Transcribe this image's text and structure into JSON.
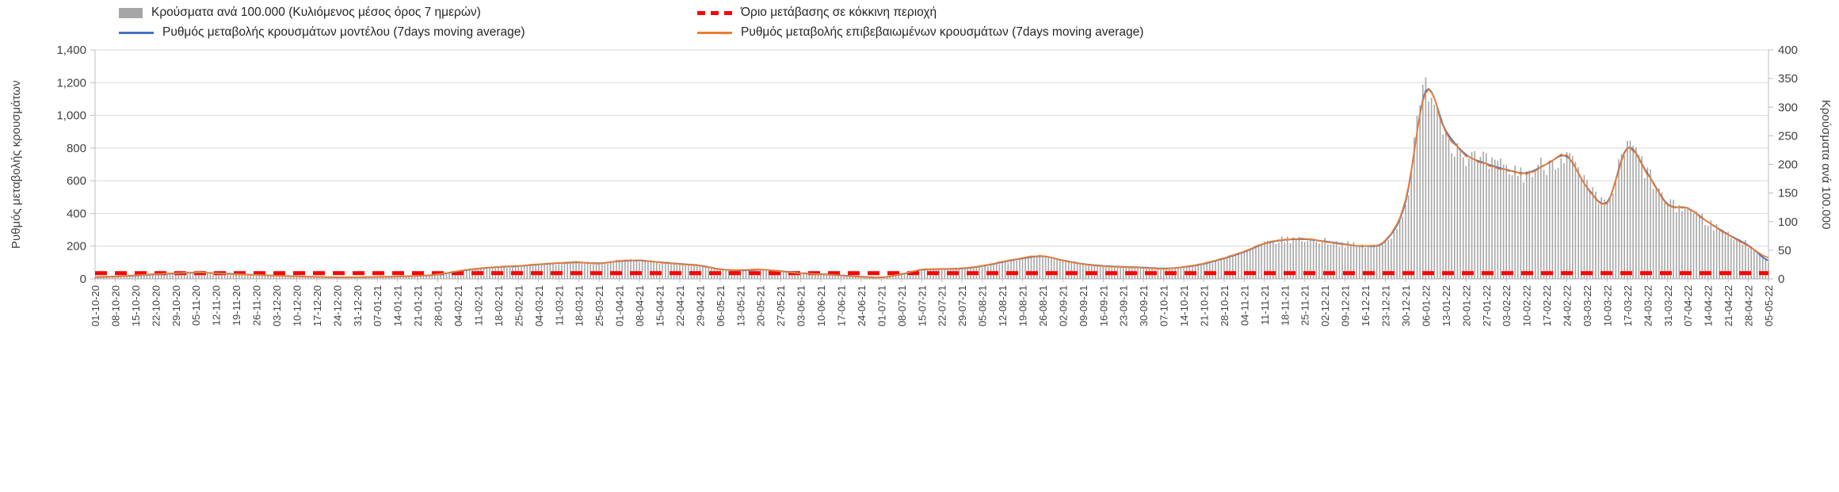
{
  "chart_data": {
    "type": "bar",
    "subtype": "combo-bar-line",
    "x_labels": [
      "01-10-20",
      "08-10-20",
      "15-10-20",
      "22-10-20",
      "29-10-20",
      "05-11-20",
      "12-11-20",
      "19-11-20",
      "26-11-20",
      "03-12-20",
      "10-12-20",
      "17-12-20",
      "24-12-20",
      "31-12-20",
      "07-01-21",
      "14-01-21",
      "21-01-21",
      "28-01-21",
      "04-02-21",
      "11-02-21",
      "18-02-21",
      "25-02-21",
      "04-03-21",
      "11-03-21",
      "18-03-21",
      "25-03-21",
      "01-04-21",
      "08-04-21",
      "15-04-21",
      "22-04-21",
      "29-04-21",
      "06-05-21",
      "13-05-21",
      "20-05-21",
      "27-05-21",
      "03-06-21",
      "10-06-21",
      "17-06-21",
      "24-06-21",
      "01-07-21",
      "08-07-21",
      "15-07-21",
      "22-07-21",
      "29-07-21",
      "05-08-21",
      "12-08-21",
      "19-08-21",
      "26-08-21",
      "02-09-21",
      "09-09-21",
      "16-09-21",
      "23-09-21",
      "30-09-21",
      "07-10-21",
      "14-10-21",
      "21-10-21",
      "28-10-21",
      "04-11-21",
      "11-11-21",
      "18-11-21",
      "25-11-21",
      "02-12-21",
      "09-12-21",
      "16-12-21",
      "23-12-21",
      "30-12-21",
      "06-01-22",
      "13-01-22",
      "20-01-22",
      "27-01-22",
      "03-02-22",
      "10-02-22",
      "17-02-22",
      "24-02-22",
      "03-03-22",
      "10-03-22",
      "17-03-22",
      "24-03-22",
      "31-03-22",
      "07-04-22",
      "14-04-22",
      "21-04-22",
      "28-04-22",
      "05-05-22"
    ],
    "left_axis": {
      "label": "Ρυθμός μεταβολής κρουσμάτων",
      "min": 0,
      "max": 1400,
      "tick_step": 200,
      "tick_labels": [
        "0",
        "200",
        "400",
        "600",
        "800",
        "1,000",
        "1,200",
        "1,400"
      ]
    },
    "right_axis": {
      "label": "Κρούσματα ανά 100.000",
      "min": 0,
      "max": 400,
      "tick_step": 50,
      "tick_labels": [
        "0",
        "50",
        "100",
        "150",
        "200",
        "250",
        "300",
        "350",
        "400"
      ]
    },
    "grid": "horizontal-only",
    "legend_position": "top",
    "bars": {
      "name": "Κρούσματα ανά 100.000 (Κυλιόμενος μέσος όρος 7 ημερών)",
      "axis": "right",
      "color": "#a6a6a6",
      "weekly_values": [
        3,
        4,
        6,
        8,
        9,
        11,
        10,
        9,
        7,
        6,
        5,
        4,
        3,
        3,
        3,
        4,
        5,
        7,
        13,
        18,
        21,
        22,
        25,
        27,
        29,
        27,
        31,
        32,
        29,
        26,
        23,
        17,
        15,
        16,
        14,
        10,
        9,
        6,
        4,
        3,
        8,
        16,
        17,
        18,
        22,
        29,
        36,
        39,
        33,
        26,
        23,
        21,
        20,
        18,
        21,
        26,
        36,
        47,
        61,
        68,
        69,
        66,
        61,
        57,
        66,
        134,
        340,
        259,
        217,
        201,
        191,
        185,
        201,
        214,
        160,
        134,
        229,
        184,
        131,
        123,
        99,
        78,
        59,
        32
      ]
    },
    "threshold": {
      "name": "Όριο μετάβασης σε κόκκινη περιοχή",
      "axis": "left",
      "color": "#ff0000",
      "value_left_axis": 35,
      "value_per_100k": 10
    },
    "model": {
      "name": "Ρυθμός μεταβολής κρουσμάτων μοντέλου (7days moving average)",
      "axis": "left",
      "color": "#4472c4",
      "weekly_values": [
        12,
        15,
        20,
        28,
        33,
        38,
        36,
        30,
        25,
        20,
        16,
        13,
        10,
        10,
        12,
        14,
        18,
        26,
        46,
        62,
        72,
        78,
        88,
        96,
        100,
        96,
        108,
        112,
        102,
        92,
        82,
        60,
        52,
        56,
        48,
        36,
        30,
        22,
        14,
        10,
        28,
        55,
        60,
        63,
        78,
        102,
        125,
        138,
        114,
        92,
        80,
        74,
        70,
        64,
        72,
        92,
        125,
        165,
        215,
        238,
        242,
        230,
        212,
        200,
        232,
        470,
        1150,
        905,
        760,
        705,
        668,
        648,
        702,
        748,
        560,
        470,
        800,
        645,
        458,
        432,
        348,
        272,
        205,
        112
      ]
    },
    "confirmed": {
      "name": "Ρυθμός μεταβολής επιβεβαιωμένων κρουσμάτων (7days moving average)",
      "axis": "left",
      "color": "#ed7d31",
      "weekly_values": [
        10,
        14,
        22,
        30,
        35,
        40,
        34,
        28,
        24,
        19,
        15,
        12,
        9,
        10,
        13,
        15,
        19,
        28,
        48,
        64,
        74,
        80,
        90,
        98,
        102,
        94,
        110,
        114,
        100,
        90,
        80,
        58,
        54,
        58,
        46,
        34,
        28,
        20,
        12,
        9,
        30,
        57,
        62,
        65,
        80,
        105,
        128,
        140,
        112,
        90,
        78,
        72,
        68,
        62,
        74,
        95,
        128,
        168,
        218,
        240,
        245,
        228,
        210,
        202,
        236,
        480,
        1145,
        895,
        755,
        700,
        665,
        645,
        705,
        752,
        555,
        465,
        795,
        640,
        455,
        430,
        345,
        268,
        200,
        130
      ]
    }
  }
}
